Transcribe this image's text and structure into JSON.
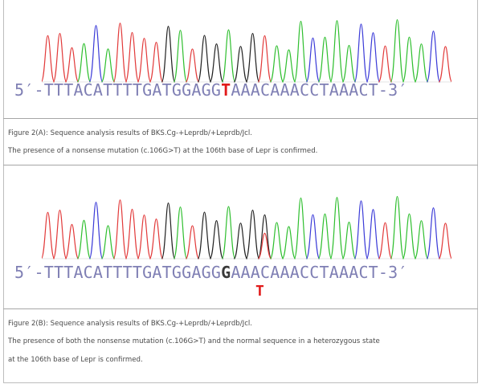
{
  "panel_a": {
    "sequence": {
      "prefix": "5′-TTTACATTTTGATGGAGG",
      "mutant_base": "T",
      "suffix": "AAACAAACCTAAACT-3′"
    },
    "caption_lines": [
      "Figure 2(A): Sequence analysis results of BKS.Cg-+Leprdb/+Leprdb/Jcl.",
      "The presence of a nonsense mutation (c.106G>T) at the 106th base of Lepr is confirmed."
    ]
  },
  "panel_b": {
    "sequence": {
      "prefix": "5′-TTTACATTTTGATGGAGG",
      "mutant_base": "G",
      "suffix": "AAACAAACCTAAACT-3′"
    },
    "second_call": "T",
    "caption_lines": [
      "Figure 2(B): Sequence analysis results of BKS.Cg-+Leprdb/+Leprdb/Jcl.",
      "The presence of both the nonsense mutation (c.106G>T) and the normal sequence in a heterozygous state",
      "at the 106th base of Lepr is confirmed."
    ]
  },
  "colors": {
    "A": "#2fbf2f",
    "C": "#3c3cd8",
    "G": "#222222",
    "T": "#e23a3a",
    "sequence_text": "#7f7fb4"
  }
}
